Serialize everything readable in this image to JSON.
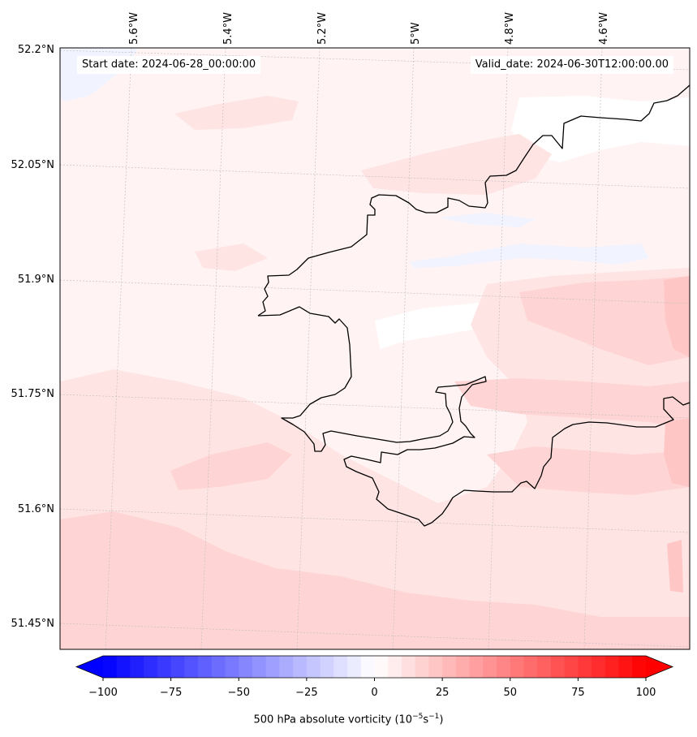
{
  "map": {
    "start_label": "Start date: 2024-06-28_00:00:00",
    "valid_label": "Valid_date: 2024-06-30T12:00:00.00",
    "lon_ticks": [
      "5.6°W",
      "5.4°W",
      "5.2°W",
      "5°W",
      "4.8°W",
      "4.6°W"
    ],
    "lat_ticks": [
      "52.2°N",
      "52.05°N",
      "51.9°N",
      "51.75°N",
      "51.6°N",
      "51.45°N"
    ],
    "coastline_color": "#000000",
    "field_colors": {
      "background": "#fff3f3",
      "light_red": "#ffe4e4",
      "medium_red": "#ffd4d4",
      "stronger_red": "#ffc6c6",
      "light_blue": "#f1f3ff",
      "white": "#ffffff"
    }
  },
  "colorbar": {
    "min": -100,
    "max": 100,
    "levels": 40,
    "cmap": "bwr",
    "extend": "both",
    "ticks": [
      "−100",
      "−75",
      "−50",
      "−25",
      "0",
      "25",
      "50",
      "75",
      "100"
    ],
    "tick_values": [
      -100,
      -75,
      -50,
      -25,
      0,
      25,
      50,
      75,
      100
    ],
    "label_main": "500 hPa absolute vorticity (10",
    "label_sup1": "−5",
    "label_mid": "s",
    "label_sup2": "−1",
    "label_end": ")"
  }
}
